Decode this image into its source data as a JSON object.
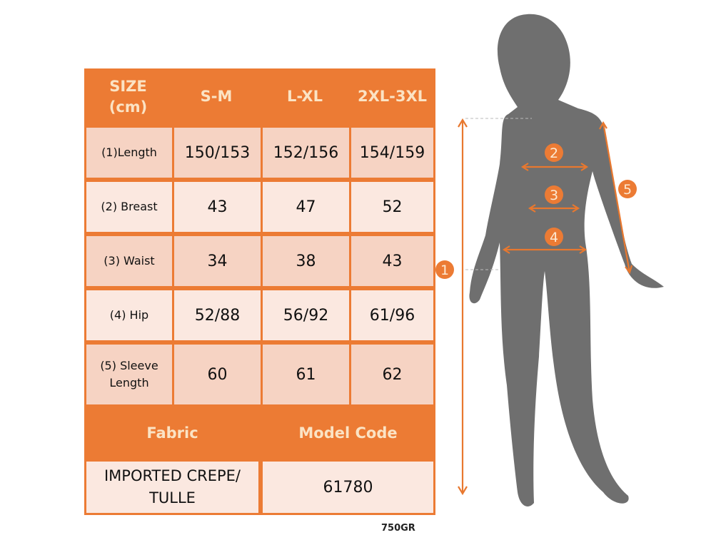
{
  "header": {
    "size_label": "SIZE (cm)",
    "sizes": [
      "S-M",
      "L-XL",
      "2XL-3XL"
    ]
  },
  "rows": [
    {
      "label": "(1)Length",
      "values": [
        "150/153",
        "152/156",
        "154/159"
      ]
    },
    {
      "label": "(2) Breast",
      "values": [
        "43",
        "47",
        "52"
      ]
    },
    {
      "label": "(3) Waist",
      "values": [
        "34",
        "38",
        "43"
      ]
    },
    {
      "label": "(4) Hip",
      "values": [
        "52/88",
        "56/92",
        "61/96"
      ]
    },
    {
      "label": "(5) Sleeve Length",
      "values": [
        "60",
        "61",
        "62"
      ]
    }
  ],
  "footer": {
    "fabric_label": "Fabric",
    "model_code_label": "Model Code",
    "fabric": "IMPORTED CREPE/ TULLE",
    "model_code": "61780"
  },
  "note": "750GR",
  "markers": [
    "1",
    "2",
    "3",
    "4",
    "5"
  ],
  "colors": {
    "accent": "#ec7b34",
    "header_text": "#fbe3c4",
    "silhouette": "#6f6f6f"
  }
}
